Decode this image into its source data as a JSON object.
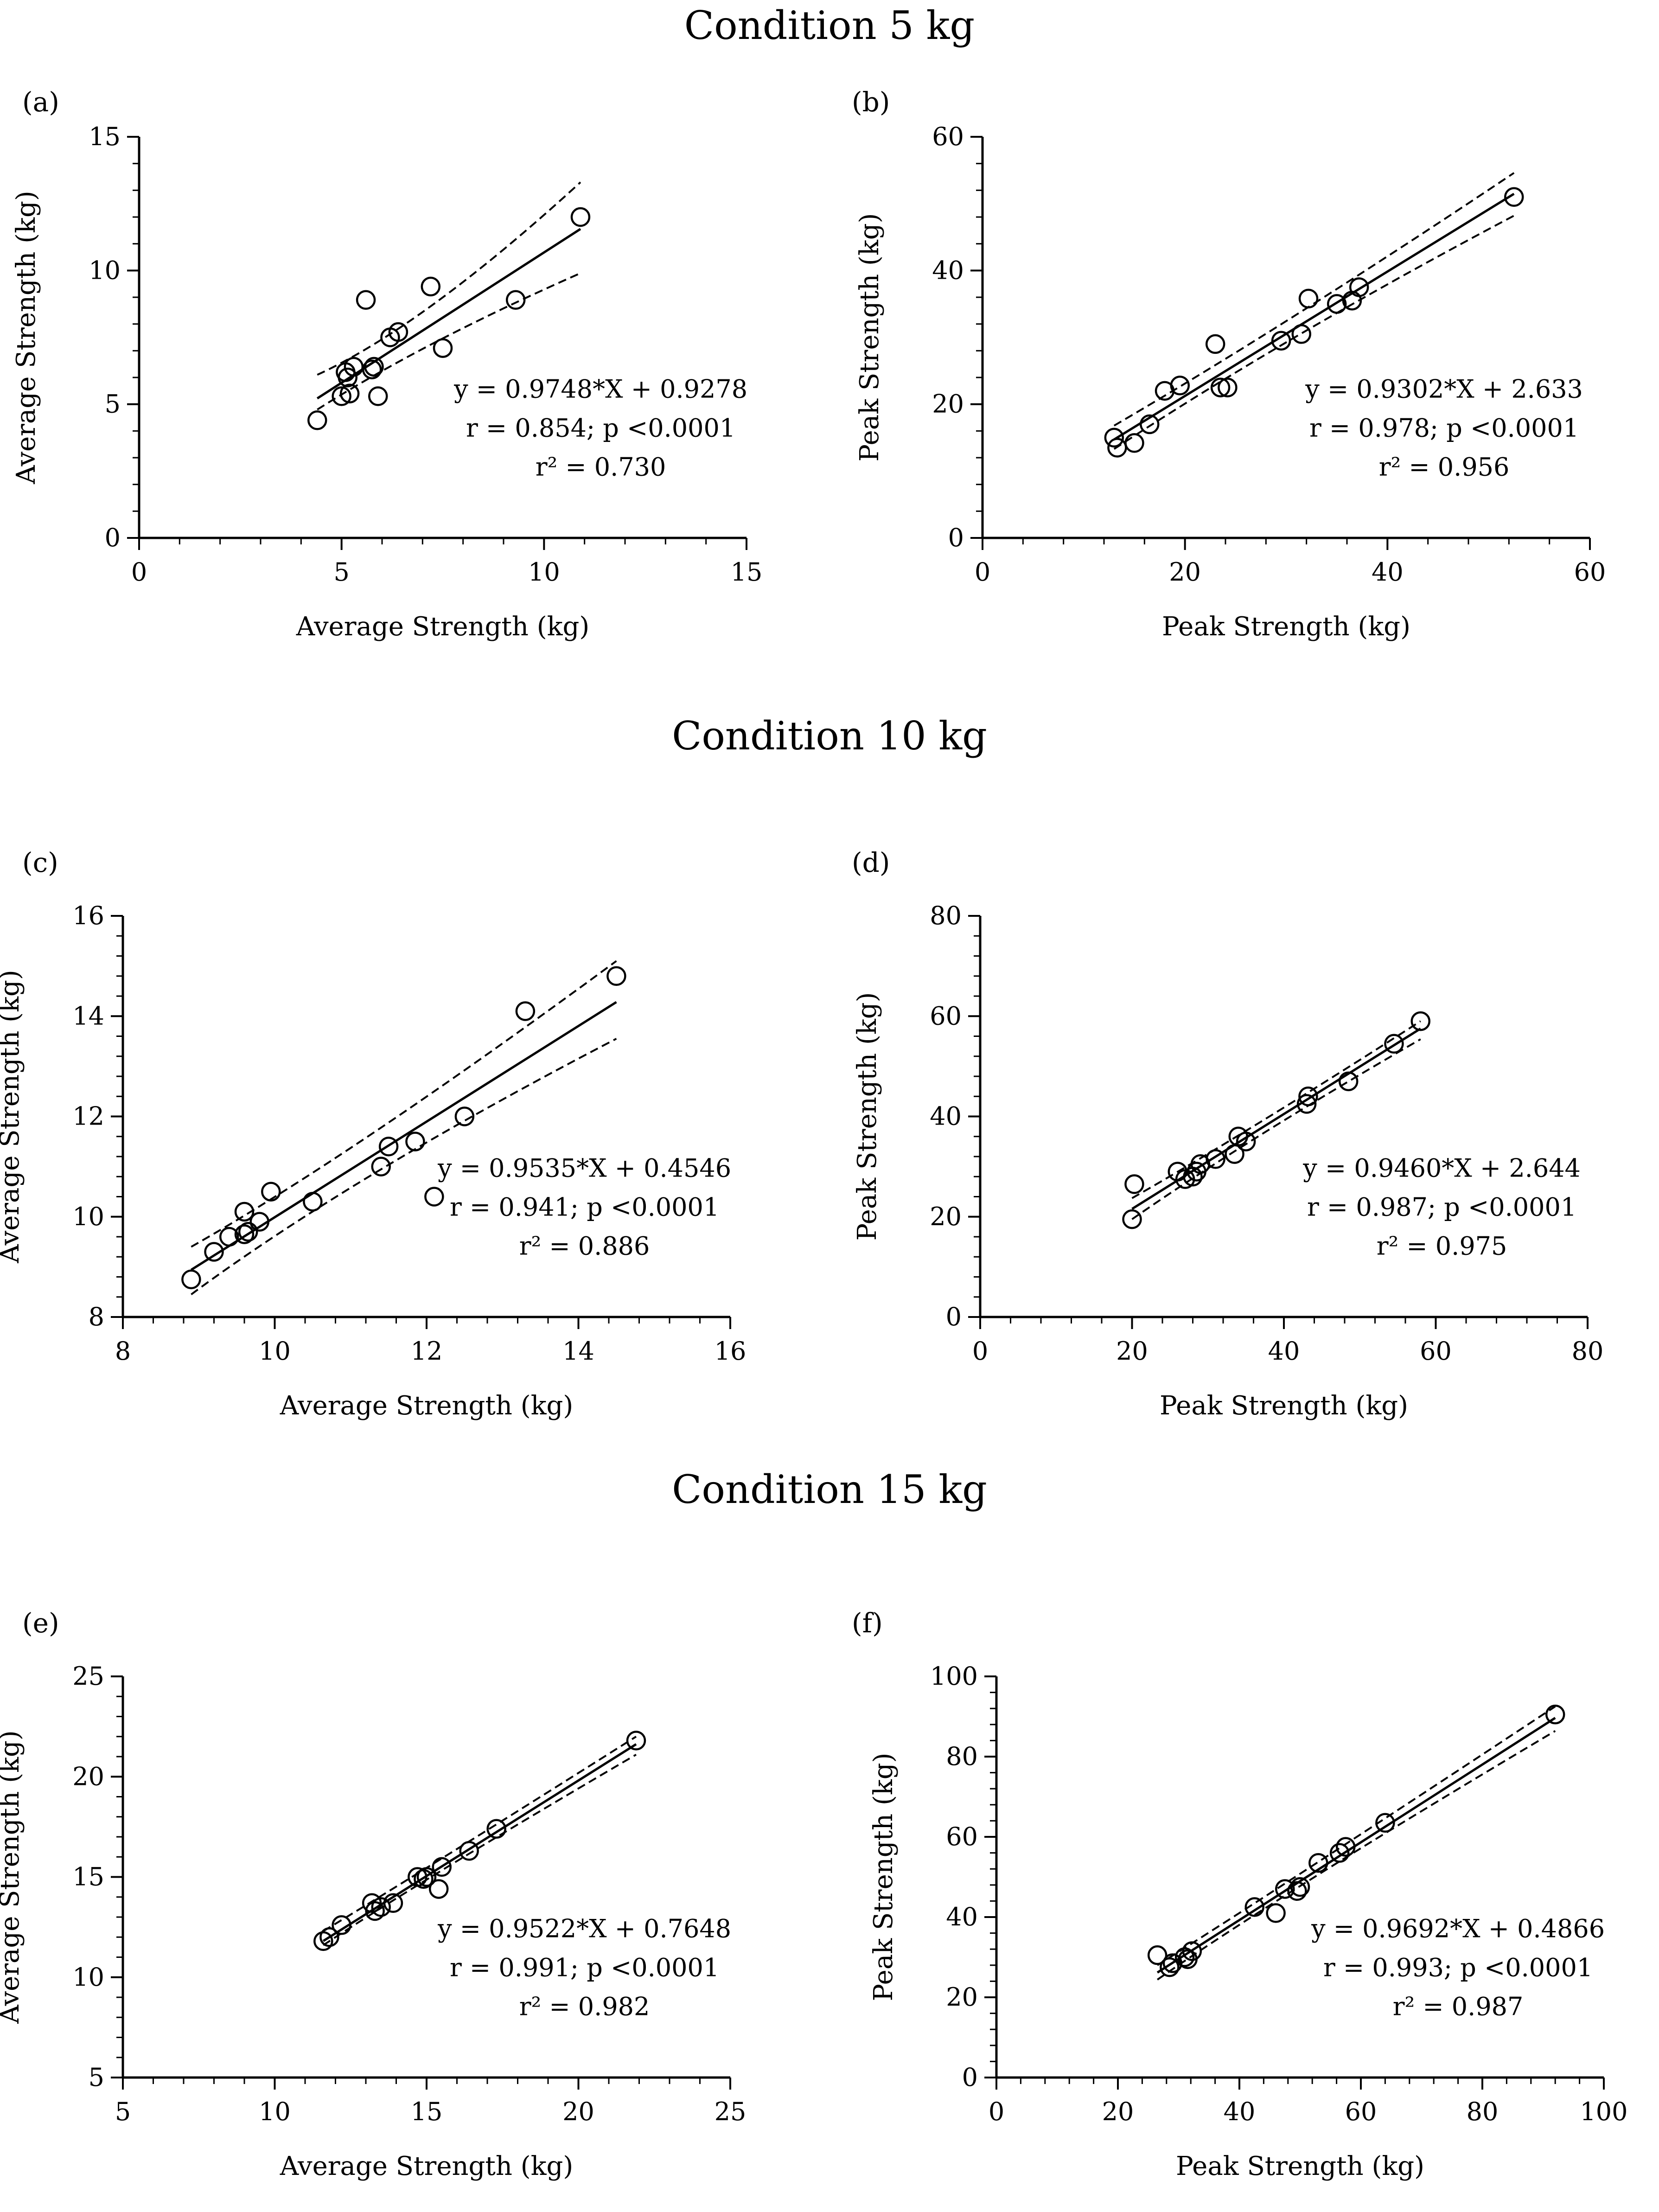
{
  "conditions": [
    "Condition 5 kg",
    "Condition 10 kg",
    "Condition 15 kg"
  ],
  "chart_data": [
    {
      "type": "scatter",
      "panel_label": "(a)",
      "xlabel": "Average Strength (kg)",
      "ylabel": "Average Strength (kg)",
      "xlim": [
        0,
        15
      ],
      "ylim": [
        0,
        15
      ],
      "xticks": [
        0,
        5,
        10,
        15
      ],
      "yticks": [
        0,
        5,
        10,
        15
      ],
      "points": [
        [
          4.4,
          4.4
        ],
        [
          5.0,
          5.3
        ],
        [
          5.1,
          6.2
        ],
        [
          5.15,
          6.0
        ],
        [
          5.2,
          5.4
        ],
        [
          5.3,
          6.4
        ],
        [
          5.6,
          8.9
        ],
        [
          5.75,
          6.3
        ],
        [
          5.8,
          6.4
        ],
        [
          5.9,
          5.3
        ],
        [
          6.2,
          7.5
        ],
        [
          6.4,
          7.7
        ],
        [
          7.2,
          9.4
        ],
        [
          7.5,
          7.1
        ],
        [
          9.3,
          8.9
        ],
        [
          10.9,
          12.0
        ]
      ],
      "fit": {
        "slope": 0.9748,
        "intercept": 0.9278,
        "x_range": [
          4.4,
          10.9
        ]
      },
      "ci_lower": [
        [
          4.4,
          4.8
        ],
        [
          7.0,
          7.3
        ],
        [
          10.9,
          9.9
        ]
      ],
      "ci_upper": [
        [
          4.4,
          6.1
        ],
        [
          7.0,
          7.9
        ],
        [
          10.9,
          13.3
        ]
      ],
      "annotation": {
        "equation": "y = 0.9748*X + 0.9278",
        "r_text": "r = 0.854; p <0.0001",
        "r2_text": "r² = 0.730"
      }
    },
    {
      "type": "scatter",
      "panel_label": "(b)",
      "xlabel": "Peak Strength (kg)",
      "ylabel": "Peak Strength (kg)",
      "xlim": [
        0,
        60
      ],
      "ylim": [
        0,
        60
      ],
      "xticks": [
        0,
        20,
        40,
        60
      ],
      "yticks": [
        0,
        20,
        40,
        60
      ],
      "points": [
        [
          13,
          15
        ],
        [
          13.3,
          13.5
        ],
        [
          15,
          14.2
        ],
        [
          16.5,
          17
        ],
        [
          18,
          22
        ],
        [
          19.5,
          22.8
        ],
        [
          23,
          29
        ],
        [
          23.5,
          22.5
        ],
        [
          24.2,
          22.5
        ],
        [
          29.5,
          29.5
        ],
        [
          31.5,
          30.5
        ],
        [
          32.2,
          35.8
        ],
        [
          35,
          35
        ],
        [
          36.5,
          35.5
        ],
        [
          37.2,
          37.5
        ],
        [
          52.5,
          51
        ]
      ],
      "fit": {
        "slope": 0.9302,
        "intercept": 2.633,
        "x_range": [
          13,
          52.5
        ]
      },
      "ci_lower": [
        [
          13,
          13.3
        ],
        [
          30,
          30.2
        ],
        [
          52.5,
          48.2
        ]
      ],
      "ci_upper": [
        [
          13,
          16.8
        ],
        [
          30,
          31.8
        ],
        [
          52.5,
          54.6
        ]
      ],
      "annotation": {
        "equation": "y = 0.9302*X + 2.633",
        "r_text": "r = 0.978; p <0.0001",
        "r2_text": "r² = 0.956"
      }
    },
    {
      "type": "scatter",
      "panel_label": "(c)",
      "xlabel": "Average Strength (kg)",
      "ylabel": "Average Strength (kg)",
      "xlim": [
        8,
        16
      ],
      "ylim": [
        8,
        16
      ],
      "xticks": [
        8,
        10,
        12,
        14,
        16
      ],
      "yticks": [
        8,
        10,
        12,
        14,
        16
      ],
      "points": [
        [
          8.9,
          8.75
        ],
        [
          9.2,
          9.3
        ],
        [
          9.4,
          9.6
        ],
        [
          9.6,
          9.65
        ],
        [
          9.6,
          10.1
        ],
        [
          9.65,
          9.7
        ],
        [
          9.8,
          9.9
        ],
        [
          9.95,
          10.5
        ],
        [
          10.5,
          10.3
        ],
        [
          11.4,
          11.0
        ],
        [
          11.5,
          11.4
        ],
        [
          11.85,
          11.5
        ],
        [
          12.1,
          10.4
        ],
        [
          12.5,
          12.0
        ],
        [
          13.3,
          14.1
        ],
        [
          14.5,
          14.8
        ]
      ],
      "fit": {
        "slope": 0.9535,
        "intercept": 0.4546,
        "x_range": [
          8.9,
          14.5
        ]
      },
      "ci_lower": [
        [
          8.9,
          8.45
        ],
        [
          11.0,
          10.8
        ],
        [
          14.5,
          13.55
        ]
      ],
      "ci_upper": [
        [
          8.9,
          9.4
        ],
        [
          11.0,
          11.2
        ],
        [
          14.5,
          15.1
        ]
      ],
      "annotation": {
        "equation": "y = 0.9535*X + 0.4546",
        "r_text": "r = 0.941; p <0.0001",
        "r2_text": "r² = 0.886"
      }
    },
    {
      "type": "scatter",
      "panel_label": "(d)",
      "xlabel": "Peak Strength (kg)",
      "ylabel": "Peak Strength (kg)",
      "xlim": [
        0,
        80
      ],
      "ylim": [
        0,
        80
      ],
      "xticks": [
        0,
        20,
        40,
        60,
        80
      ],
      "yticks": [
        0,
        20,
        40,
        60,
        80
      ],
      "points": [
        [
          20,
          19.5
        ],
        [
          20.3,
          26.5
        ],
        [
          26,
          29
        ],
        [
          27,
          27.5
        ],
        [
          28,
          28
        ],
        [
          28.5,
          29
        ],
        [
          29,
          30.5
        ],
        [
          31,
          31.5
        ],
        [
          33.5,
          32.5
        ],
        [
          34,
          36
        ],
        [
          35,
          35
        ],
        [
          43,
          42.5
        ],
        [
          43.2,
          44
        ],
        [
          48.5,
          47
        ],
        [
          54.5,
          54.5
        ],
        [
          58,
          59
        ]
      ],
      "fit": {
        "slope": 0.946,
        "intercept": 2.644,
        "x_range": [
          20,
          58
        ]
      },
      "ci_lower": [
        [
          20,
          19.5
        ],
        [
          35,
          35.3
        ],
        [
          58,
          55.4
        ]
      ],
      "ci_upper": [
        [
          20,
          23.7
        ],
        [
          35,
          36.6
        ],
        [
          58,
          59.0
        ]
      ],
      "annotation": {
        "equation": "y = 0.9460*X + 2.644",
        "r_text": "r = 0.987; p <0.0001",
        "r2_text": "r² = 0.975"
      }
    },
    {
      "type": "scatter",
      "panel_label": "(e)",
      "xlabel": "Average Strength (kg)",
      "ylabel": "Average Strength (kg)",
      "xlim": [
        5,
        25
      ],
      "ylim": [
        5,
        25
      ],
      "xticks": [
        5,
        10,
        15,
        20,
        25
      ],
      "yticks": [
        5,
        10,
        15,
        20,
        25
      ],
      "points": [
        [
          11.6,
          11.8
        ],
        [
          11.8,
          12.0
        ],
        [
          12.2,
          12.6
        ],
        [
          13.2,
          13.7
        ],
        [
          13.3,
          13.3
        ],
        [
          13.5,
          13.5
        ],
        [
          13.9,
          13.7
        ],
        [
          14.7,
          15.0
        ],
        [
          14.9,
          14.9
        ],
        [
          15.0,
          15.0
        ],
        [
          15.4,
          14.4
        ],
        [
          15.5,
          15.5
        ],
        [
          16.4,
          16.3
        ],
        [
          17.3,
          17.4
        ],
        [
          21.9,
          21.8
        ]
      ],
      "fit": {
        "slope": 0.9522,
        "intercept": 0.7648,
        "x_range": [
          11.6,
          21.9
        ]
      },
      "ci_lower": [
        [
          11.6,
          11.6
        ],
        [
          15.0,
          15.0
        ],
        [
          21.9,
          21.1
        ]
      ],
      "ci_upper": [
        [
          11.6,
          12.3
        ],
        [
          15.0,
          15.4
        ],
        [
          21.9,
          22.0
        ]
      ],
      "annotation": {
        "equation": "y = 0.9522*X + 0.7648",
        "r_text": "r = 0.991; p <0.0001",
        "r2_text": "r² = 0.982"
      }
    },
    {
      "type": "scatter",
      "panel_label": "(f)",
      "xlabel": "Peak Strength (kg)",
      "ylabel": "Peak Strength (kg)",
      "xlim": [
        0,
        100
      ],
      "ylim": [
        0,
        100
      ],
      "xticks": [
        0,
        20,
        40,
        60,
        80,
        100
      ],
      "yticks": [
        0,
        20,
        40,
        60,
        80,
        100
      ],
      "points": [
        [
          26.5,
          30.5
        ],
        [
          28.5,
          27.5
        ],
        [
          29,
          28.5
        ],
        [
          31,
          30
        ],
        [
          31.5,
          29.5
        ],
        [
          32.2,
          31.5
        ],
        [
          42.5,
          42.5
        ],
        [
          46,
          41
        ],
        [
          47.5,
          47
        ],
        [
          49.5,
          46.5
        ],
        [
          50,
          47.5
        ],
        [
          53,
          53.5
        ],
        [
          56.5,
          56
        ],
        [
          57.5,
          57.5
        ],
        [
          64,
          63.5
        ],
        [
          92,
          90.5
        ]
      ],
      "fit": {
        "slope": 0.9692,
        "intercept": 0.4866,
        "x_range": [
          26.5,
          92
        ]
      },
      "ci_lower": [
        [
          26.5,
          24.4
        ],
        [
          47,
          46.0
        ],
        [
          92,
          86.4
        ]
      ],
      "ci_upper": [
        [
          26.5,
          28.0
        ],
        [
          47,
          47.5
        ],
        [
          92,
          92.5
        ]
      ],
      "annotation": {
        "equation": "y = 0.9692*X + 0.4866",
        "r_text": "r = 0.993; p <0.0001",
        "r2_text": "r² = 0.987"
      }
    }
  ]
}
